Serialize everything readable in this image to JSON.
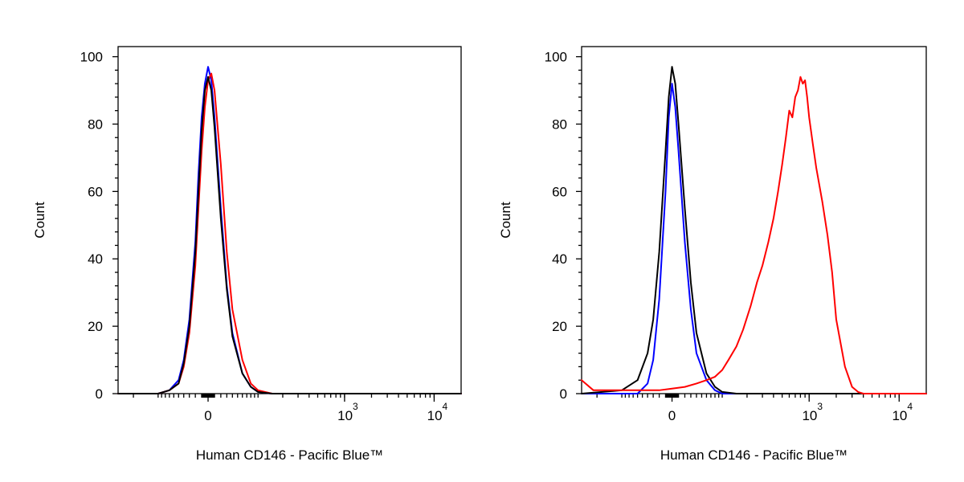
{
  "chart_data": [
    {
      "type": "line",
      "title": "",
      "xlabel": "Human CD146 - Pacific Blue™",
      "ylabel": "Count",
      "x_scale": "biexponential",
      "xlim": [
        -300,
        20000
      ],
      "ylim": [
        0,
        103
      ],
      "yticks": [
        0,
        20,
        40,
        60,
        80,
        100
      ],
      "xticks": [
        {
          "value": 0,
          "label": "0"
        },
        {
          "value": 1000,
          "label": "10",
          "exp": "3"
        },
        {
          "value": 10000,
          "label": "10",
          "exp": "4"
        }
      ],
      "grid": false,
      "legend": "none",
      "series": [
        {
          "color": "#0000ff",
          "x": [
            -300,
            -100,
            -70,
            -50,
            -40,
            -30,
            -20,
            -15,
            -10,
            -5,
            0,
            5,
            10,
            20,
            30,
            40,
            60,
            80,
            100,
            150,
            1000,
            20000
          ],
          "y": [
            0,
            0,
            1,
            4,
            10,
            22,
            45,
            65,
            82,
            92,
            97,
            93,
            82,
            55,
            32,
            18,
            6,
            2,
            0.5,
            0,
            0,
            0
          ]
        },
        {
          "color": "#ff0000",
          "x": [
            -300,
            -100,
            -70,
            -50,
            -40,
            -30,
            -20,
            -15,
            -10,
            -5,
            0,
            5,
            10,
            20,
            30,
            40,
            60,
            80,
            100,
            150,
            1000,
            20000
          ],
          "y": [
            0,
            0,
            1,
            3,
            8,
            18,
            38,
            55,
            72,
            85,
            93,
            95,
            90,
            68,
            42,
            25,
            10,
            3,
            1,
            0,
            0,
            0
          ]
        },
        {
          "color": "#000000",
          "x": [
            -300,
            -100,
            -70,
            -50,
            -40,
            -30,
            -20,
            -15,
            -10,
            -5,
            0,
            5,
            10,
            20,
            30,
            40,
            60,
            80,
            100,
            150,
            1000,
            20000
          ],
          "y": [
            0,
            0,
            1,
            3,
            9,
            20,
            42,
            60,
            78,
            90,
            94,
            90,
            79,
            52,
            31,
            17,
            6,
            2,
            0.5,
            0,
            0,
            0
          ]
        }
      ]
    },
    {
      "type": "line",
      "title": "",
      "xlabel": "Human CD146 - Pacific Blue™",
      "ylabel": "Count",
      "x_scale": "biexponential",
      "xlim": [
        -300,
        20000
      ],
      "ylim": [
        0,
        103
      ],
      "yticks": [
        0,
        20,
        40,
        60,
        80,
        100
      ],
      "xticks": [
        {
          "value": 0,
          "label": "0"
        },
        {
          "value": 1000,
          "label": "10",
          "exp": "3"
        },
        {
          "value": 10000,
          "label": "10",
          "exp": "4"
        }
      ],
      "grid": false,
      "legend": "none",
      "series": [
        {
          "color": "#0000ff",
          "x": [
            -300,
            -100,
            -60,
            -40,
            -30,
            -20,
            -10,
            -5,
            0,
            5,
            10,
            20,
            30,
            40,
            60,
            80,
            100,
            150,
            20000
          ],
          "y": [
            0,
            0,
            0,
            3,
            10,
            28,
            60,
            82,
            92,
            85,
            72,
            45,
            25,
            12,
            4,
            1,
            0,
            0,
            0
          ]
        },
        {
          "color": "#000000",
          "x": [
            -300,
            -100,
            -60,
            -40,
            -30,
            -20,
            -10,
            -5,
            0,
            5,
            10,
            20,
            30,
            40,
            60,
            80,
            100,
            150,
            20000
          ],
          "y": [
            0,
            1,
            4,
            12,
            22,
            42,
            72,
            88,
            97,
            92,
            80,
            55,
            33,
            18,
            6,
            2,
            0.5,
            0,
            0
          ]
        },
        {
          "color": "#ff0000",
          "x": [
            -300,
            -220,
            -150,
            -100,
            -60,
            -40,
            -20,
            0,
            20,
            40,
            60,
            80,
            100,
            120,
            150,
            180,
            220,
            260,
            300,
            350,
            400,
            450,
            500,
            550,
            600,
            650,
            700,
            750,
            800,
            850,
            900,
            950,
            1000,
            1100,
            1200,
            1400,
            1600,
            1800,
            2000,
            2500,
            3000,
            3500,
            4000,
            20000
          ],
          "y": [
            4,
            1,
            1,
            1,
            1,
            1,
            1,
            1.5,
            2,
            3,
            4,
            5,
            7,
            10,
            14,
            19,
            26,
            33,
            38,
            45,
            52,
            60,
            68,
            76,
            84,
            82,
            88,
            90,
            94,
            92,
            93,
            88,
            82,
            74,
            67,
            57,
            47,
            36,
            22,
            8,
            2,
            0.5,
            0,
            0
          ]
        }
      ]
    }
  ]
}
